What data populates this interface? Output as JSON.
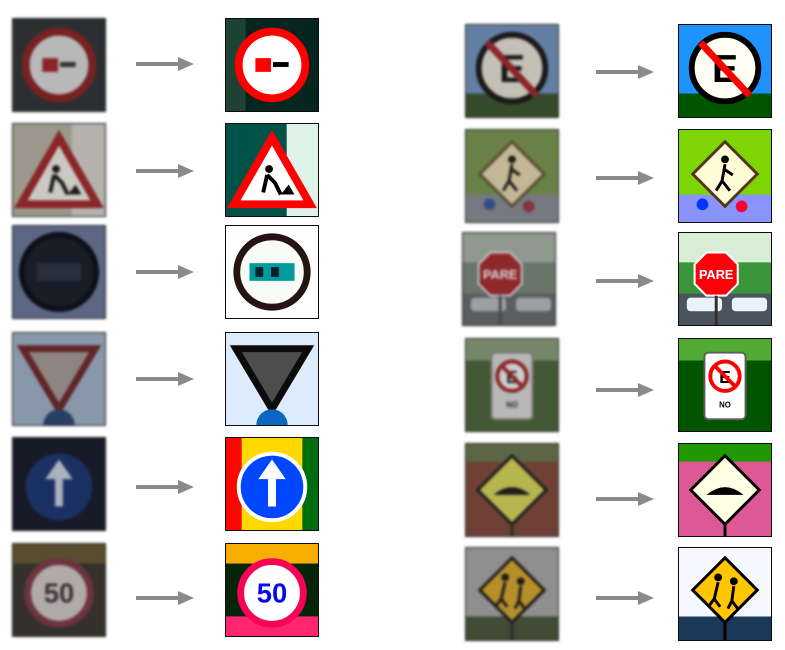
{
  "figure": {
    "sign_labels": {
      "speed_limit_value": "50",
      "stop_word": "PARE",
      "no_parking_letter": "E",
      "no_parking_plate": "NO"
    },
    "colors": {
      "arrow": "#8a8a8a",
      "sign_red": "#c0282b",
      "sign_blue": "#1d54b8",
      "sign_yellow": "#e8c21a",
      "tile_border": "#2a2a2a"
    },
    "pairs": [
      {
        "name": "no-parking-small-sign",
        "column": "left",
        "row": 1
      },
      {
        "name": "road-works-triangle",
        "column": "left",
        "row": 2
      },
      {
        "name": "round-dark-sign",
        "column": "left",
        "row": 3
      },
      {
        "name": "yield-triangle",
        "column": "left",
        "row": 4
      },
      {
        "name": "ahead-only-arrow",
        "column": "left",
        "row": 5
      },
      {
        "name": "speed-limit-50",
        "column": "left",
        "row": 6
      },
      {
        "name": "no-parking-e-sign",
        "column": "right",
        "row": 1
      },
      {
        "name": "pedestrian-diamond",
        "column": "right",
        "row": 2
      },
      {
        "name": "pare-stop-sign",
        "column": "right",
        "row": 3
      },
      {
        "name": "no-parking-e-plate",
        "column": "right",
        "row": 4
      },
      {
        "name": "bump-diamond",
        "column": "right",
        "row": 5
      },
      {
        "name": "children-crossing-diamond",
        "column": "right",
        "row": 6
      }
    ]
  }
}
